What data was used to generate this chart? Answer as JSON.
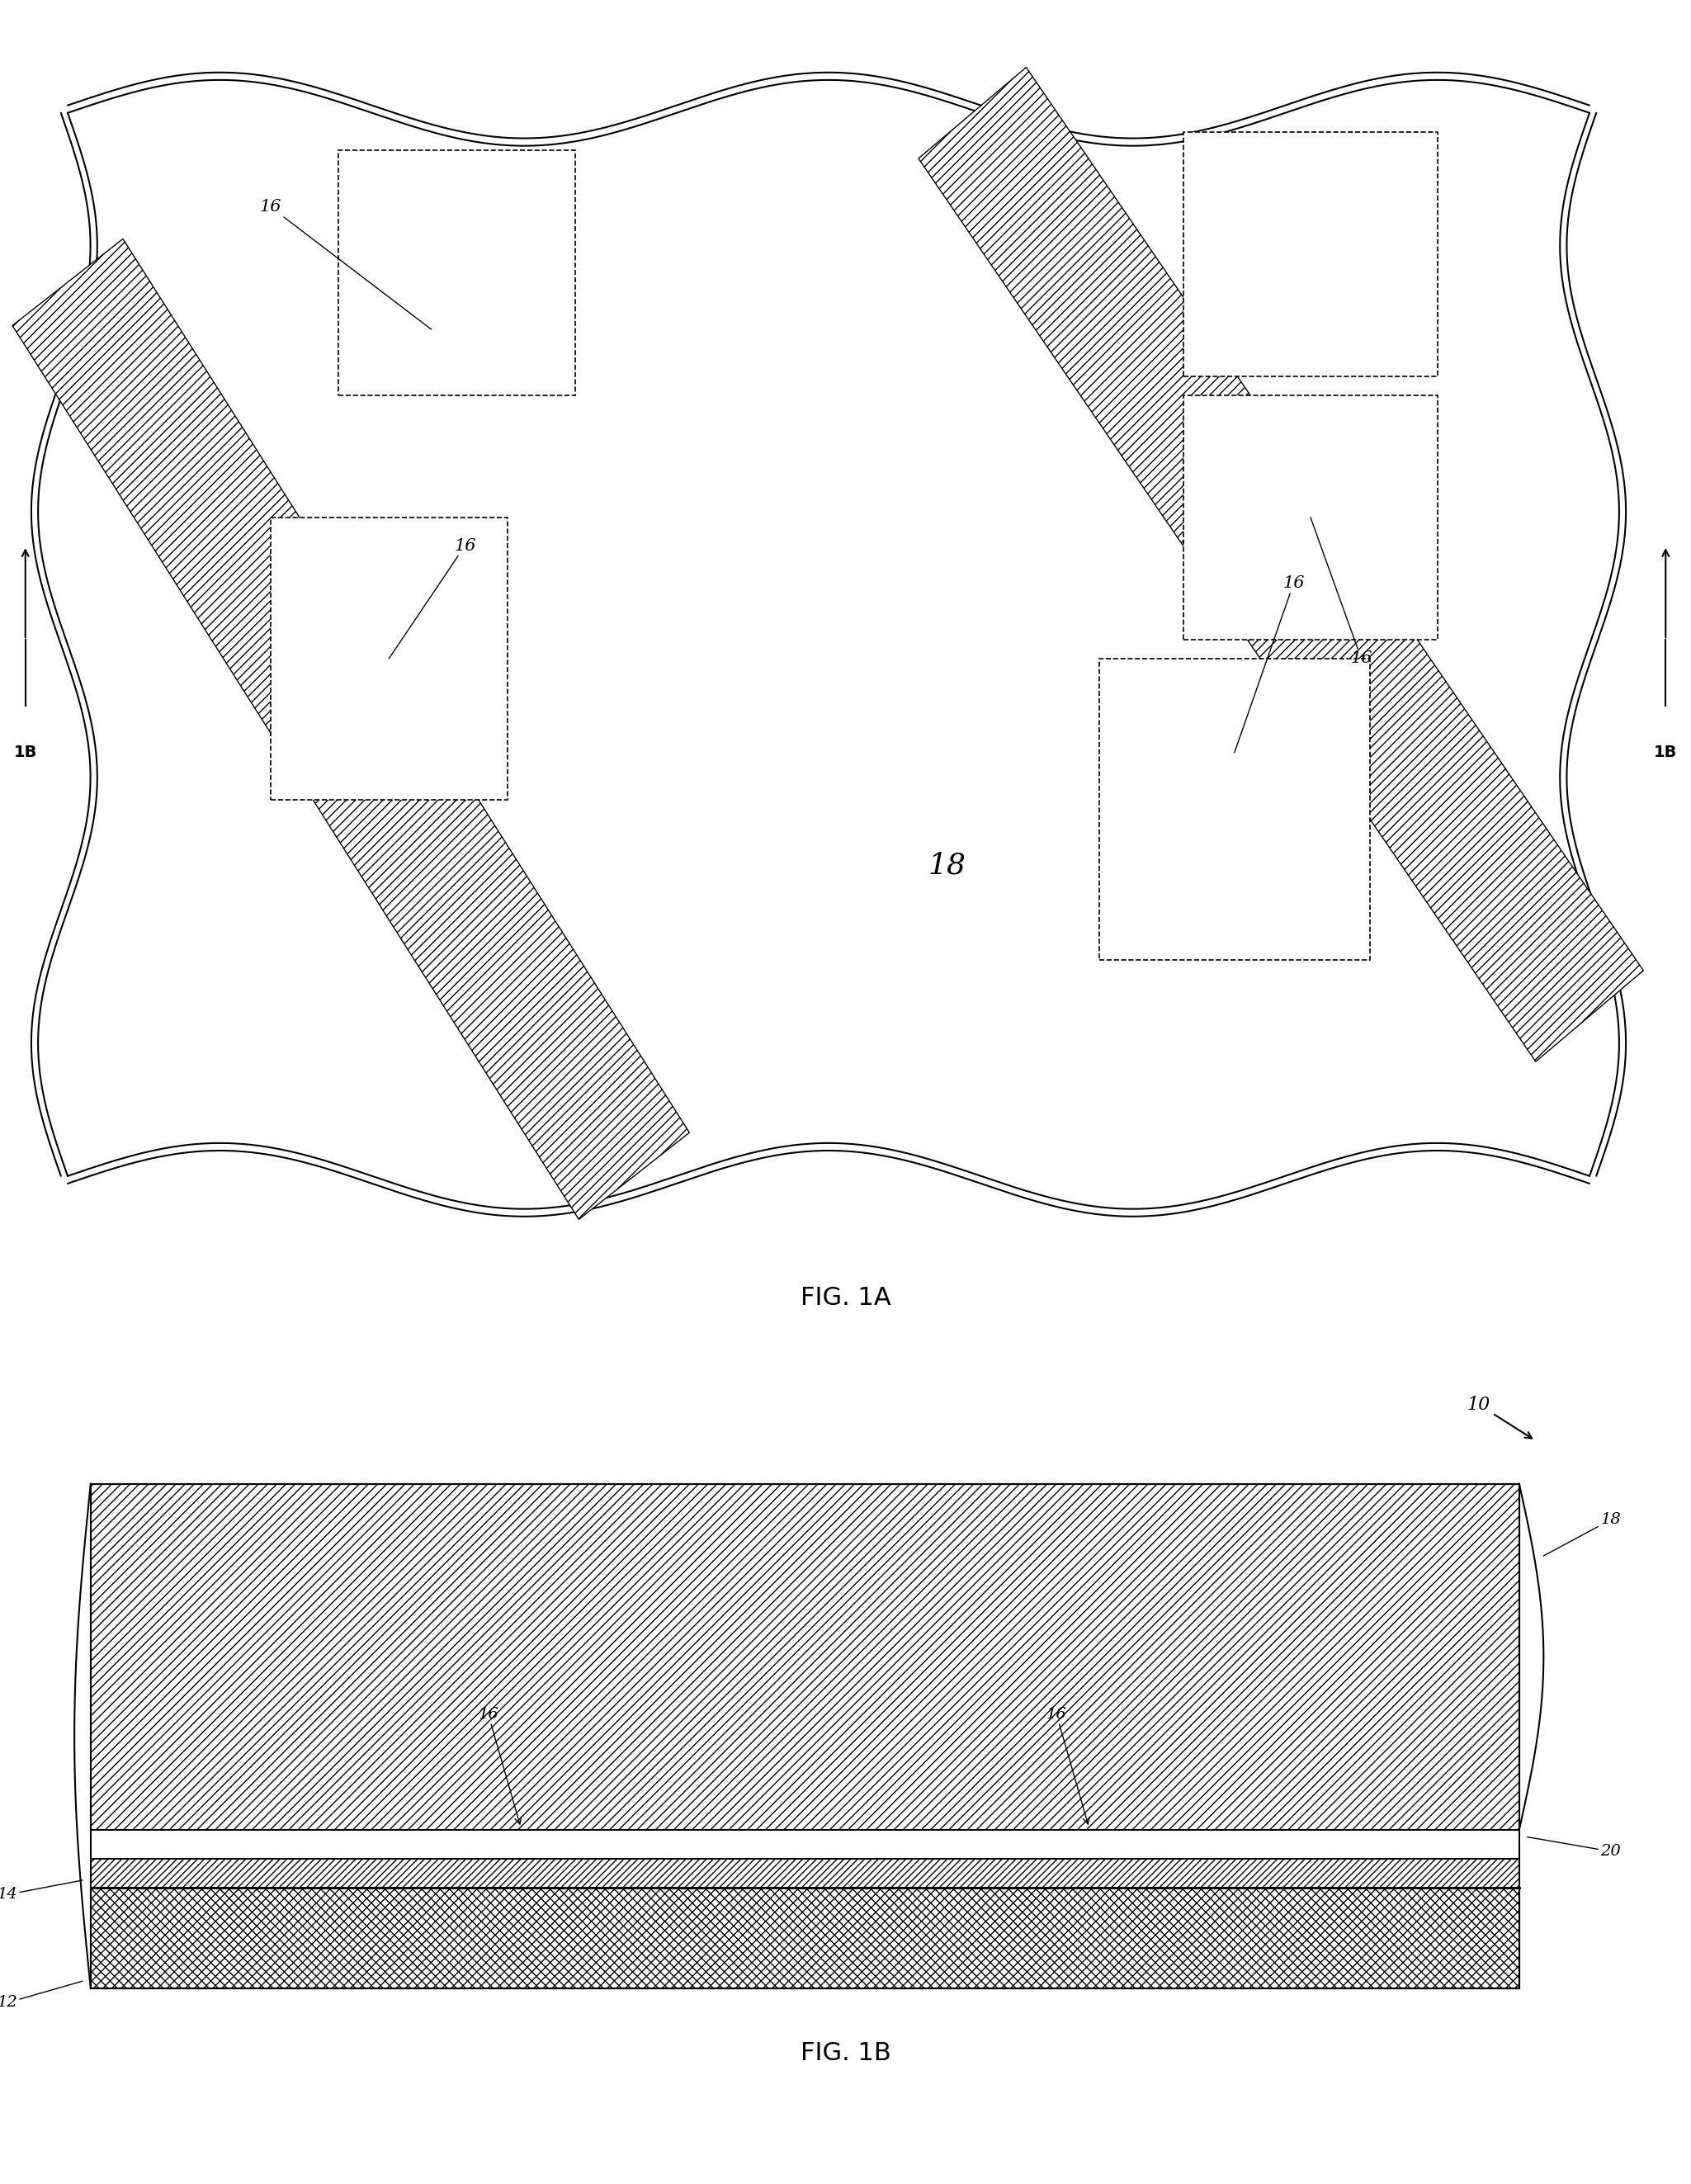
{
  "fig_width": 20.49,
  "fig_height": 26.46,
  "bg_color": "#ffffff",
  "fig1a_label": "FIG. 1A",
  "fig1b_label": "FIG. 1B",
  "label_16": "16",
  "label_18": "18",
  "label_10": "10",
  "label_12": "12",
  "label_14": "14",
  "label_20": "20",
  "label_1B": "1B"
}
